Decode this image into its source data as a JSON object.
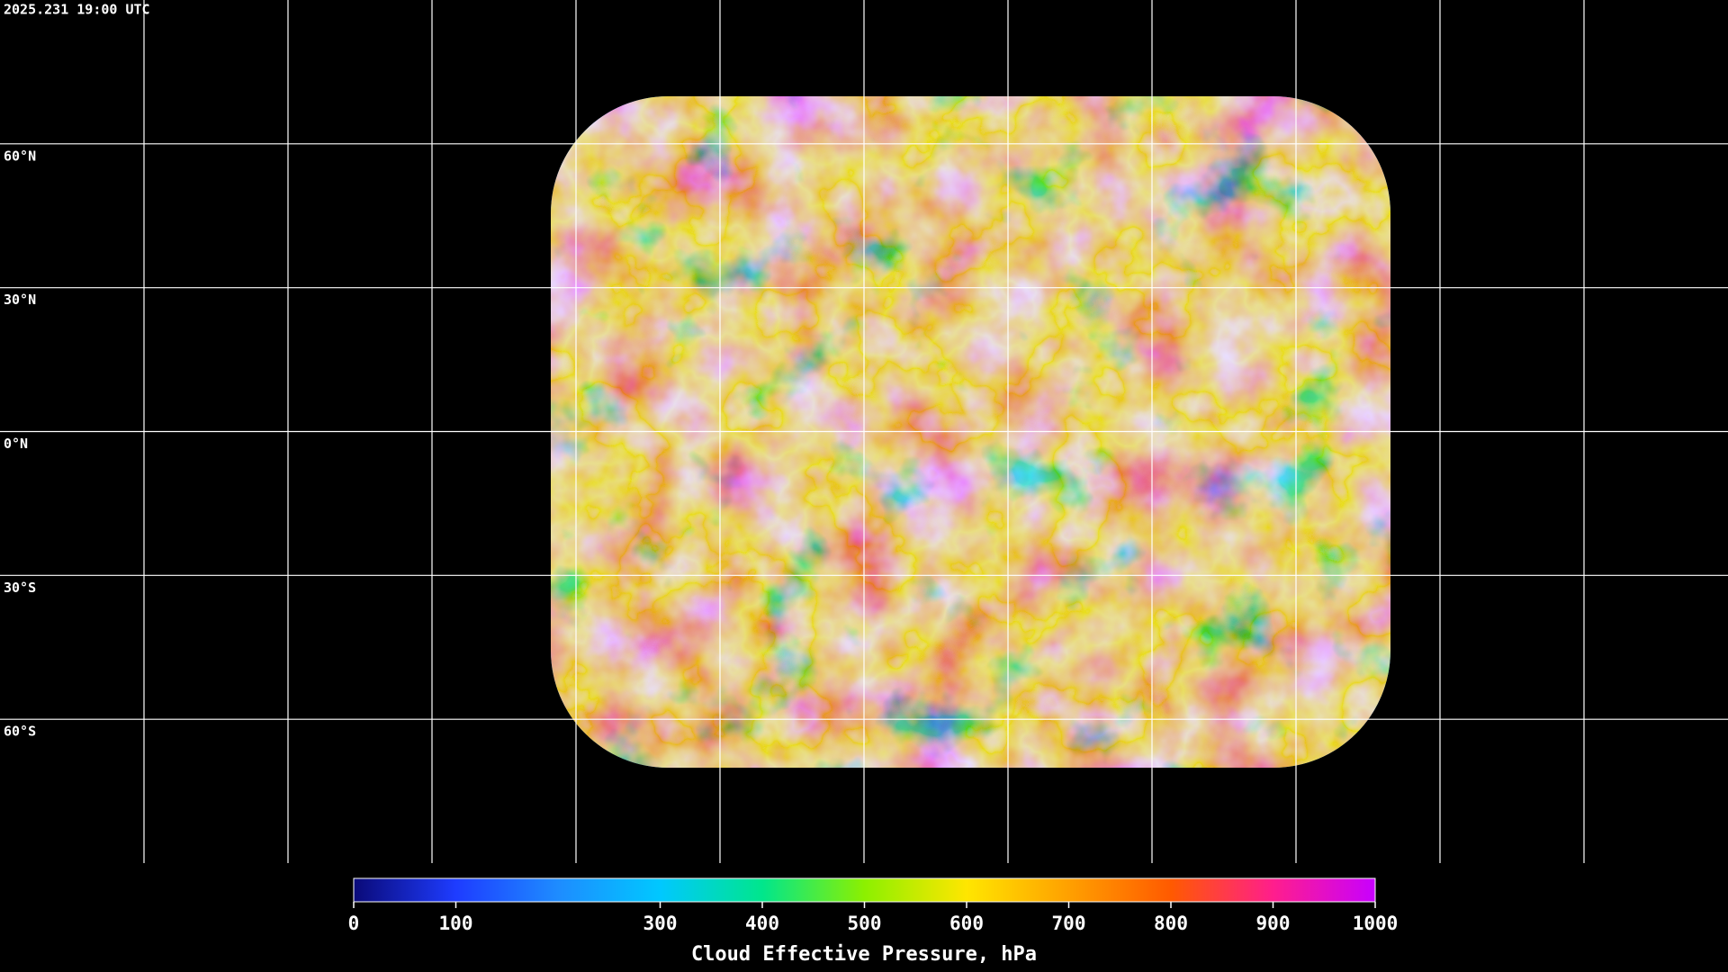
{
  "header": {
    "timestamp": "2025.231 19:00 UTC"
  },
  "map": {
    "lat_labels": [
      "60°N",
      "30°N",
      "0°N",
      "30°S",
      "60°S"
    ]
  },
  "colorbar": {
    "title": "Cloud Effective Pressure, hPa",
    "range": [
      0,
      1000
    ],
    "ticks": [
      0,
      100,
      300,
      400,
      500,
      600,
      700,
      800,
      900,
      1000
    ],
    "colors": [
      "#0a0a78",
      "#1e3cff",
      "#1e8cff",
      "#00c8ff",
      "#00e68c",
      "#8cf000",
      "#ffe600",
      "#ffa000",
      "#ff5a00",
      "#ff1e8c",
      "#c800ff"
    ]
  }
}
